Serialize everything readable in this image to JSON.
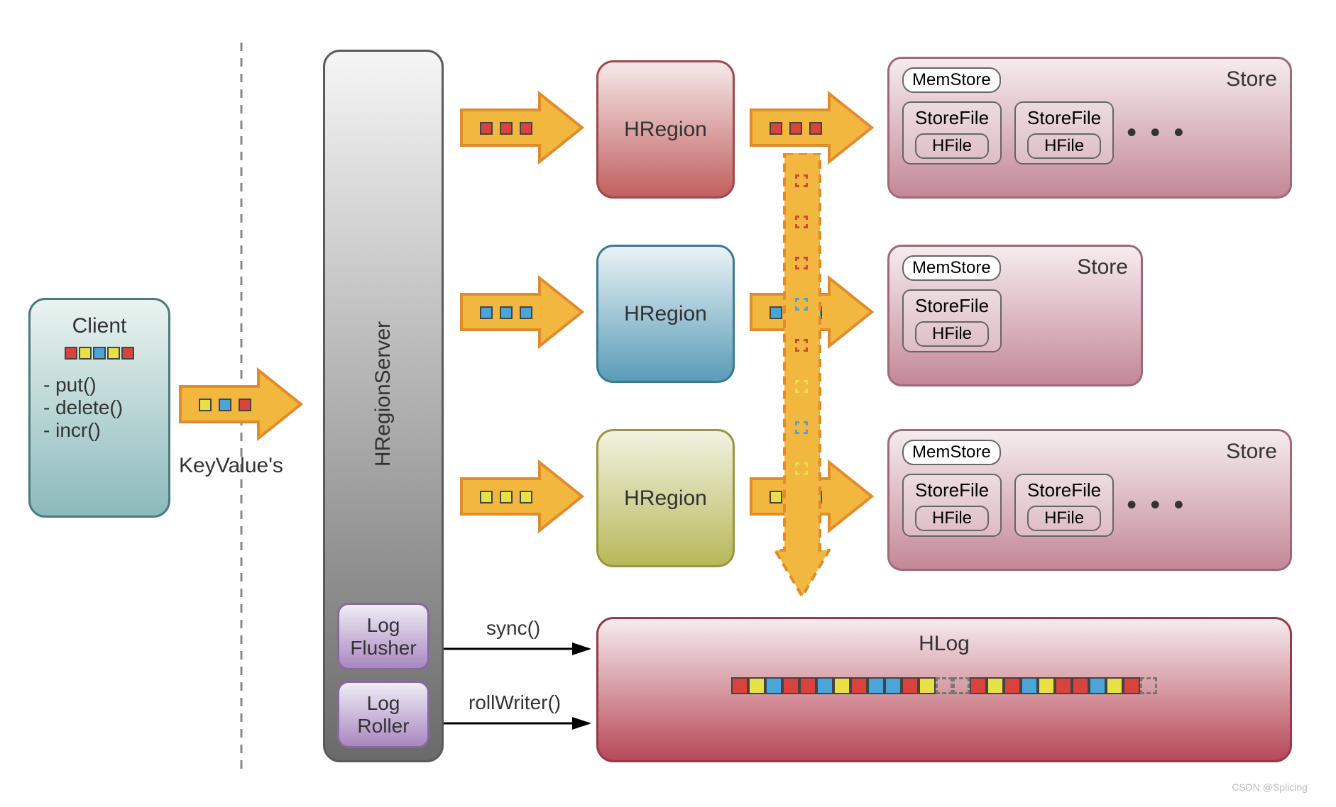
{
  "diagram": {
    "type": "flowchart",
    "background_color": "#ffffff",
    "font_family": "Arial",
    "colors": {
      "red": "#d9433d",
      "blue": "#4aa5d8",
      "yellow": "#e7e146",
      "green_yellow": "#c4c84a",
      "arrow_fill": "#f2b73f",
      "arrow_border": "#e38b2a",
      "dashed_line": "#888888",
      "client_bg_top": "#eaf3f0",
      "client_bg_bot": "#8bbabc",
      "client_border": "#4a7a7a",
      "server_bg_top": "#f5f5f5",
      "server_bg_bot": "#6a6a6a",
      "server_border": "#5a5a5a",
      "region_red_top": "#f5e8e8",
      "region_red_bot": "#c26060",
      "region_red_border": "#a04848",
      "region_blue_top": "#eaf2f5",
      "region_blue_bot": "#5a9cb8",
      "region_blue_border": "#3a7a98",
      "region_yel_top": "#f2f2e2",
      "region_yel_bot": "#b8b85a",
      "region_yel_border": "#98983a",
      "store_top": "#f5ecee",
      "store_bot": "#c48898",
      "store_border": "#a06878",
      "log_top": "#f0ecf5",
      "log_bot": "#a888c0",
      "log_border": "#8868a0",
      "hlog_top": "#f5ecee",
      "hlog_bot": "#b84858",
      "hlog_border": "#983848"
    },
    "client": {
      "title": "Client",
      "methods": [
        "- put()",
        "- delete()",
        "- incr()"
      ],
      "squares": [
        "red",
        "yellow",
        "blue",
        "yellow",
        "red"
      ]
    },
    "keyvalues_label": "KeyValue's",
    "keyvalues_squares": [
      "yellow",
      "blue",
      "red"
    ],
    "server_label": "HRegionServer",
    "log_flusher": "Log Flusher",
    "log_roller": "Log Roller",
    "sync_label": "sync()",
    "rollwriter_label": "rollWriter()",
    "regions": [
      {
        "label": "HRegion",
        "color": "red",
        "squares": [
          "red",
          "red",
          "red"
        ]
      },
      {
        "label": "HRegion",
        "color": "blue",
        "squares": [
          "blue",
          "blue",
          "blue"
        ]
      },
      {
        "label": "HRegion",
        "color": "yellow",
        "squares": [
          "yellow",
          "yellow",
          "yellow"
        ]
      }
    ],
    "stores": [
      {
        "memstore": "MemStore",
        "title": "Store",
        "storefiles": [
          "StoreFile",
          "StoreFile"
        ],
        "hfile": "HFile",
        "ellipsis": true
      },
      {
        "memstore": "MemStore",
        "title": "Store",
        "storefiles": [
          "StoreFile"
        ],
        "hfile": "HFile",
        "ellipsis": false
      },
      {
        "memstore": "MemStore",
        "title": "Store",
        "storefiles": [
          "StoreFile",
          "StoreFile"
        ],
        "hfile": "HFile",
        "ellipsis": true
      }
    ],
    "hlog": {
      "label": "HLog",
      "squares": [
        "red",
        "yellow",
        "blue",
        "red",
        "red",
        "blue",
        "yellow",
        "red",
        "blue",
        "blue",
        "red",
        "yellow",
        "gap",
        "gap",
        "red",
        "yellow",
        "red",
        "blue",
        "yellow",
        "red",
        "red",
        "blue",
        "yellow",
        "red",
        "gap"
      ]
    },
    "down_arrow_squares": [
      "red",
      "red",
      "red",
      "blue",
      "red",
      "yellow",
      "blue",
      "yellow"
    ],
    "watermark": "CSDN @Splicing"
  }
}
